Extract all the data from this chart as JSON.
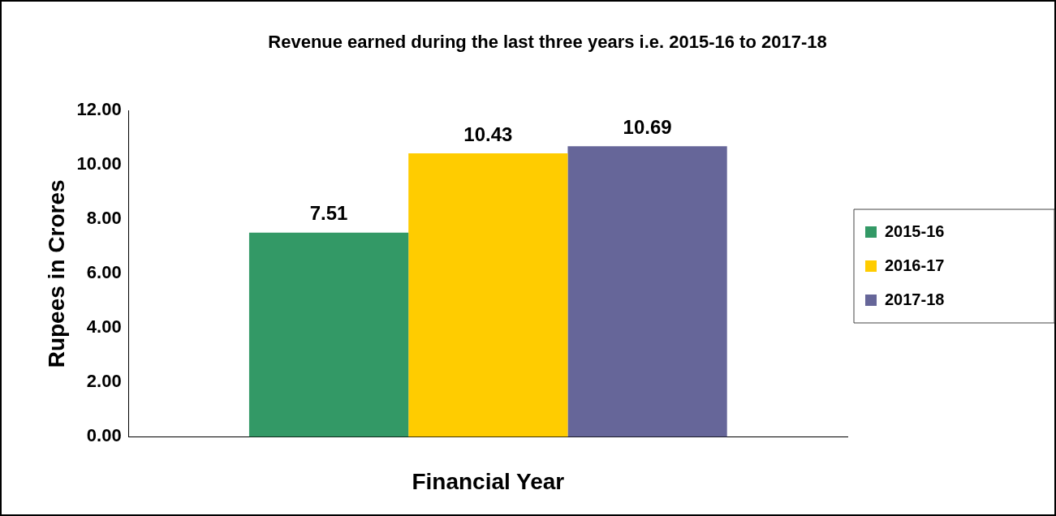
{
  "chart_data": {
    "type": "bar",
    "title": "Revenue earned during the last three years i.e. 2015-16 to 2017-18",
    "xlabel": "Financial Year",
    "ylabel": "Rupees in Crores",
    "categories": [
      null
    ],
    "series": [
      {
        "name": "2015-16",
        "color": "#339966",
        "values": [
          7.51
        ]
      },
      {
        "name": "2016-17",
        "color": "#ffcc00",
        "values": [
          10.43
        ]
      },
      {
        "name": "2017-18",
        "color": "#666699",
        "values": [
          10.69
        ]
      }
    ],
    "ylim": [
      0,
      12
    ],
    "yticks": [
      {
        "value": 0,
        "label": "0.00"
      },
      {
        "value": 2,
        "label": "2.00"
      },
      {
        "value": 4,
        "label": "4.00"
      },
      {
        "value": 6,
        "label": "6.00"
      },
      {
        "value": 8,
        "label": "8.00"
      },
      {
        "value": 10,
        "label": "10.00"
      },
      {
        "value": 12,
        "label": "12.00"
      }
    ],
    "tick_labels": "y",
    "grid": false,
    "legend": "right",
    "data_labels": true
  }
}
